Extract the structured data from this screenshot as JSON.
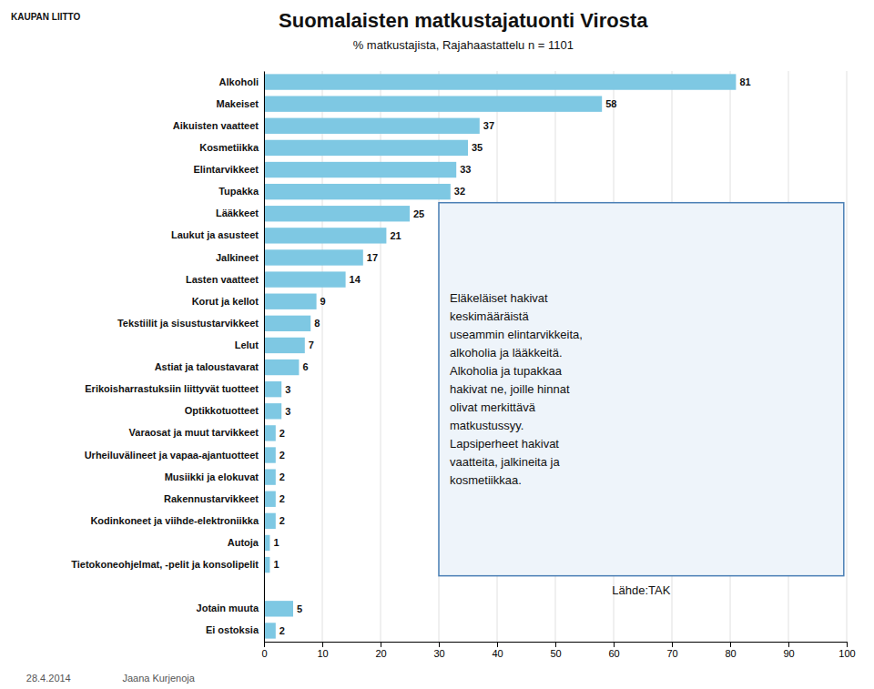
{
  "chart_data": {
    "type": "bar",
    "orientation": "horizontal",
    "title": "Suomalaisten matkustajatuonti Virosta",
    "subtitle": "% matkustajista, Rajahaastattelu n = 1101",
    "categories": [
      "Alkoholi",
      "Makeiset",
      "Aikuisten vaatteet",
      "Kosmetiikka",
      "Elintarvikkeet",
      "Tupakka",
      "Lääkkeet",
      "Laukut ja asusteet",
      "Jalkineet",
      "Lasten vaatteet",
      "Korut ja kellot",
      "Tekstiilit ja sisustustarvikkeet",
      "Lelut",
      "Astiat ja taloustavarat",
      "Erikoisharrastuksiin liittyvät tuotteet",
      "Optikkotuotteet",
      "Varaosat ja muut tarvikkeet",
      "Urheiluvälineet ja vapaa-ajantuotteet",
      "Musiikki ja elokuvat",
      "Rakennustarvikkeet",
      "Kodinkoneet ja viihde-elektroniikka",
      "Autoja",
      "Tietokoneohjelmat, -pelit ja konsolipelit",
      null,
      "Jotain muuta",
      "Ei ostoksia"
    ],
    "values": [
      81,
      58,
      37,
      35,
      33,
      32,
      25,
      21,
      17,
      14,
      9,
      8,
      7,
      6,
      3,
      3,
      2,
      2,
      2,
      2,
      2,
      1,
      1,
      null,
      5,
      2
    ],
    "color": "#7ec8e3",
    "data_labels": true,
    "xlim": [
      0,
      100
    ],
    "xticks": [
      0,
      10,
      20,
      30,
      40,
      50,
      60,
      70,
      80,
      90,
      100
    ],
    "grid": true,
    "annotation": "Eläkeläiset hakivat\nkeskimääräistä\nuseammin elintarvikkeita,\nalkoholia ja lääkkeitä.\nAlkoholia ja tupakkaa\nhakivat ne, joille hinnat\nolivat merkittävä\nmatkustussyy.\nLapsiperheet hakivat\nvaatteita, jalkineita ja\nkosmetiikkaa.",
    "source": "Lähde:TAK",
    "footer": [
      "28.4.2014",
      "Jaana Kurjenoja"
    ],
    "logo": "KAUPAN LIITTO"
  }
}
